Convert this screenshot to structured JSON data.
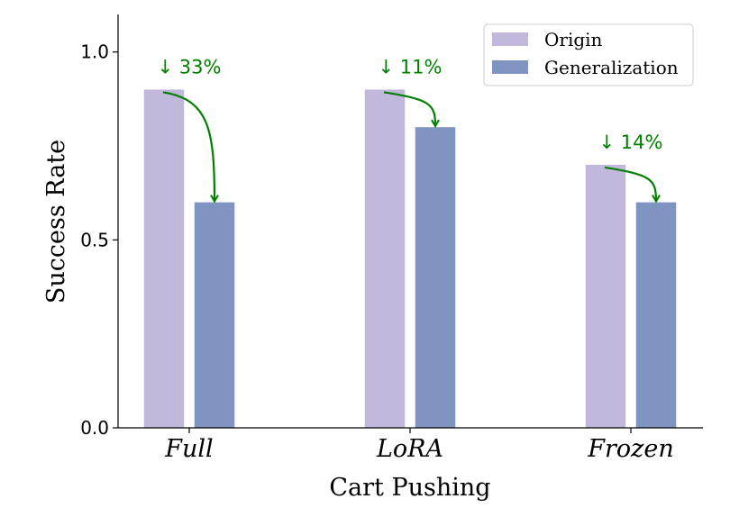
{
  "chart_data": {
    "type": "bar",
    "title": "",
    "xlabel": "Cart Pushing",
    "ylabel": "Success Rate",
    "categories": [
      "Full",
      "LoRA",
      "Frozen"
    ],
    "series": [
      {
        "name": "Origin",
        "values": [
          0.9,
          0.9,
          0.7
        ],
        "color": "#c2b8db"
      },
      {
        "name": "Generalization",
        "values": [
          0.6,
          0.8,
          0.6
        ],
        "color": "#8094c2"
      }
    ],
    "ylim": [
      0,
      1.1
    ],
    "yticks": [
      0.0,
      0.5,
      1.0
    ],
    "ytick_labels": [
      "0.0",
      "0.5",
      "1.0"
    ],
    "legend_position": "top-right",
    "grid": false,
    "annotations": [
      {
        "category": "Full",
        "text": "↓ 33%"
      },
      {
        "category": "LoRA",
        "text": "↓ 11%"
      },
      {
        "category": "Frozen",
        "text": "↓ 14%"
      }
    ],
    "annotation_color": "#008000"
  }
}
